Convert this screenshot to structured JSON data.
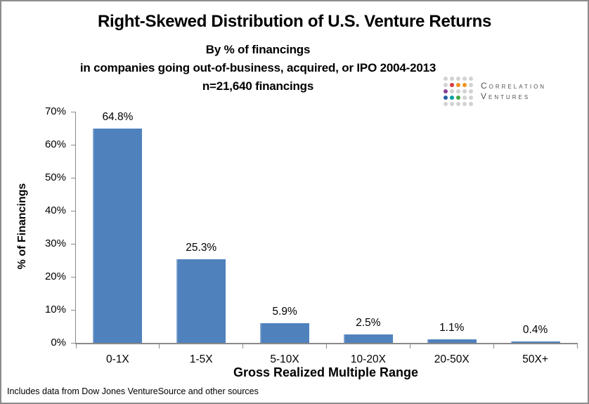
{
  "header": {
    "title": "Right-Skewed Distribution of U.S. Venture Returns",
    "subtitle_lines": [
      "By % of financings",
      "in companies going out-of-business, acquired, or IPO 2004-2013",
      "n=21,640 financings"
    ]
  },
  "logo": {
    "name_line1": "Correlation",
    "name_line2": "Ventures",
    "dot_palette": {
      "g": "#d2d2d2",
      "r": "#d93a3e",
      "o": "#f0941d",
      "p": "#8b3d96",
      "b": "#2b5ea7",
      "t": "#00a0a6",
      "n": "#44a948"
    },
    "dot_pattern": [
      "ggggg",
      "groog",
      "pgggg",
      "btngg",
      "ggggg"
    ]
  },
  "chart_data": {
    "type": "bar",
    "categories": [
      "0-1X",
      "1-5X",
      "5-10X",
      "10-20X",
      "20-50X",
      "50X+"
    ],
    "values": [
      64.8,
      25.3,
      5.9,
      2.5,
      1.1,
      0.4
    ],
    "value_labels": [
      "64.8%",
      "25.3%",
      "5.9%",
      "2.5%",
      "1.1%",
      "0.4%"
    ],
    "title": "Right-Skewed Distribution of U.S. Venture Returns",
    "xlabel": "Gross Realized Multiple Range",
    "ylabel": "% of Financings",
    "ylim": [
      0,
      70
    ],
    "ytick_step": 10,
    "ytick_labels": [
      "0%",
      "10%",
      "20%",
      "30%",
      "40%",
      "50%",
      "60%",
      "70%"
    ],
    "grid": false,
    "legend": null,
    "bar_color": "#4f81bd",
    "axis_color": "#8a8a8a"
  },
  "footnote": "Includes data from Dow Jones VentureSource and other sources"
}
